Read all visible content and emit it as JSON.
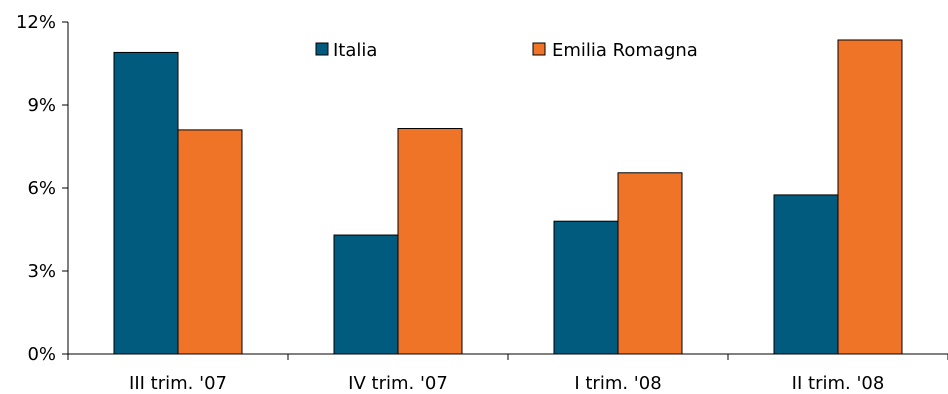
{
  "chart_data": {
    "type": "bar",
    "title": "",
    "xlabel": "",
    "ylabel": "",
    "categories": [
      "III trim. '07",
      "IV trim. '07",
      "I trim. '08",
      "II trim. '08"
    ],
    "series": [
      {
        "name": "Italia",
        "values": [
          10.9,
          4.3,
          4.8,
          5.75
        ],
        "color": "#005b7f"
      },
      {
        "name": "Emilia Romagna",
        "values": [
          8.1,
          8.15,
          6.55,
          11.35
        ],
        "color": "#f07428"
      }
    ],
    "ylim": [
      0,
      12
    ],
    "yticks": [
      0,
      3,
      6,
      9,
      12
    ],
    "ytick_labels": [
      "0%",
      "3%",
      "6%",
      "9%",
      "12%"
    ],
    "grid": false,
    "legend_position": "top"
  }
}
